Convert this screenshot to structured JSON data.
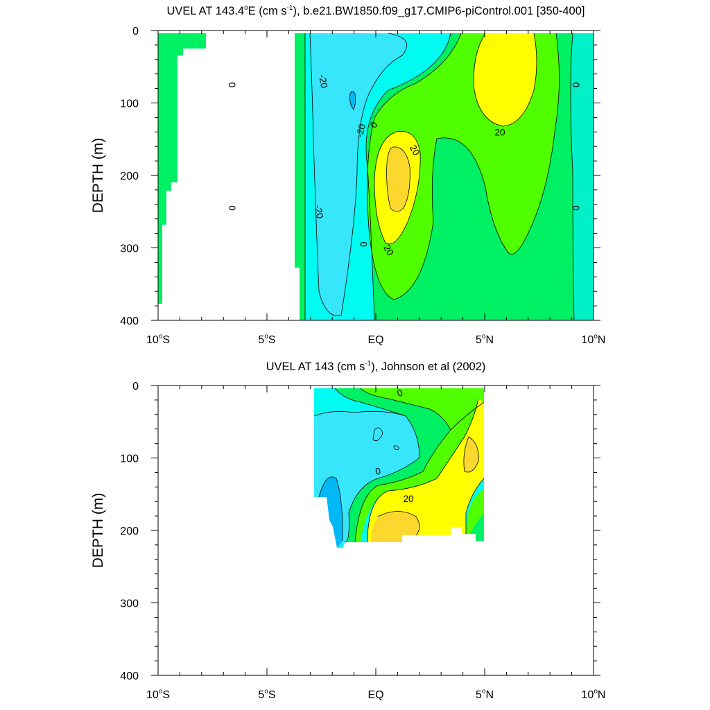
{
  "chart_data": [
    {
      "type": "contour",
      "title_main": "UVEL AT 143.4",
      "title_deg": "o",
      "title_mid": "E (cm s",
      "title_exp": "-1",
      "title_tail": "), b.e21.BW1850.f09_g17.CMIP6-piControl.001 [350-400]",
      "ylabel": "DEPTH (m)",
      "xlim": [
        -10,
        10
      ],
      "ylim": [
        0,
        400
      ],
      "x_ticks": [
        {
          "value": -10,
          "num": "10",
          "deg": "o",
          "hem": "S"
        },
        {
          "value": -5,
          "num": "5",
          "deg": "o",
          "hem": "S"
        },
        {
          "value": 0,
          "num": "EQ",
          "deg": "",
          "hem": ""
        },
        {
          "value": 5,
          "num": "5",
          "deg": "o",
          "hem": "N"
        },
        {
          "value": 10,
          "num": "10",
          "deg": "o",
          "hem": "N"
        }
      ],
      "y_ticks": [
        {
          "value": 0,
          "label": "0"
        },
        {
          "value": 100,
          "label": "100"
        },
        {
          "value": 200,
          "label": "200"
        },
        {
          "value": 300,
          "label": "300"
        },
        {
          "value": 400,
          "label": "400"
        }
      ],
      "colors": {
        "neg30": "#00b8f5",
        "neg20": "#37e6fa",
        "neg10": "#00fcf0",
        "zero": "#00f0c8",
        "pos10": "#00f064",
        "pos20": "#50ff00",
        "pos30": "#ffff00",
        "pos40": "#fcd82e"
      },
      "contour_labels": [
        {
          "text": "0",
          "x": -6.6,
          "depth": 75,
          "rot": 90
        },
        {
          "text": "-20",
          "x": -2.4,
          "depth": 70,
          "rot": 80
        },
        {
          "text": "-20",
          "x": -0.7,
          "depth": 138,
          "rot": -75
        },
        {
          "text": "0",
          "x": -0.1,
          "depth": 130,
          "rot": -60
        },
        {
          "text": "20",
          "x": 1.8,
          "depth": 165,
          "rot": 60
        },
        {
          "text": "20",
          "x": 5.7,
          "depth": 140,
          "rot": 0
        },
        {
          "text": "0",
          "x": 9.2,
          "depth": 75,
          "rot": 90
        },
        {
          "text": "0",
          "x": -6.6,
          "depth": 245,
          "rot": 90
        },
        {
          "text": "-20",
          "x": -2.6,
          "depth": 250,
          "rot": 80
        },
        {
          "text": "0",
          "x": -0.55,
          "depth": 295,
          "rot": 90
        },
        {
          "text": "20",
          "x": 0.6,
          "depth": 303,
          "rot": 60
        },
        {
          "text": "0",
          "x": 9.2,
          "depth": 245,
          "rot": 90
        }
      ]
    },
    {
      "type": "contour",
      "title_main": "UVEL AT 143 (cm s",
      "title_exp": "-1",
      "title_tail": "), Johnson et al (2002)",
      "ylabel": "DEPTH (m)",
      "xlim": [
        -10,
        10
      ],
      "ylim": [
        0,
        400
      ],
      "x_ticks": [
        {
          "value": -10,
          "num": "10",
          "deg": "o",
          "hem": "S"
        },
        {
          "value": -5,
          "num": "5",
          "deg": "o",
          "hem": "S"
        },
        {
          "value": 0,
          "num": "EQ",
          "deg": "",
          "hem": ""
        },
        {
          "value": 5,
          "num": "5",
          "deg": "o",
          "hem": "N"
        },
        {
          "value": 10,
          "num": "10",
          "deg": "o",
          "hem": "N"
        }
      ],
      "y_ticks": [
        {
          "value": 0,
          "label": "0"
        },
        {
          "value": 100,
          "label": "100"
        },
        {
          "value": 200,
          "label": "200"
        },
        {
          "value": 300,
          "label": "300"
        },
        {
          "value": 400,
          "label": "400"
        }
      ],
      "contour_labels": [
        {
          "text": "0",
          "x": 1.1,
          "depth": 10,
          "rot": -20
        },
        {
          "text": "0",
          "x": 0.1,
          "depth": 118,
          "rot": -10
        },
        {
          "text": "20",
          "x": 1.5,
          "depth": 156,
          "rot": 0
        }
      ]
    }
  ]
}
